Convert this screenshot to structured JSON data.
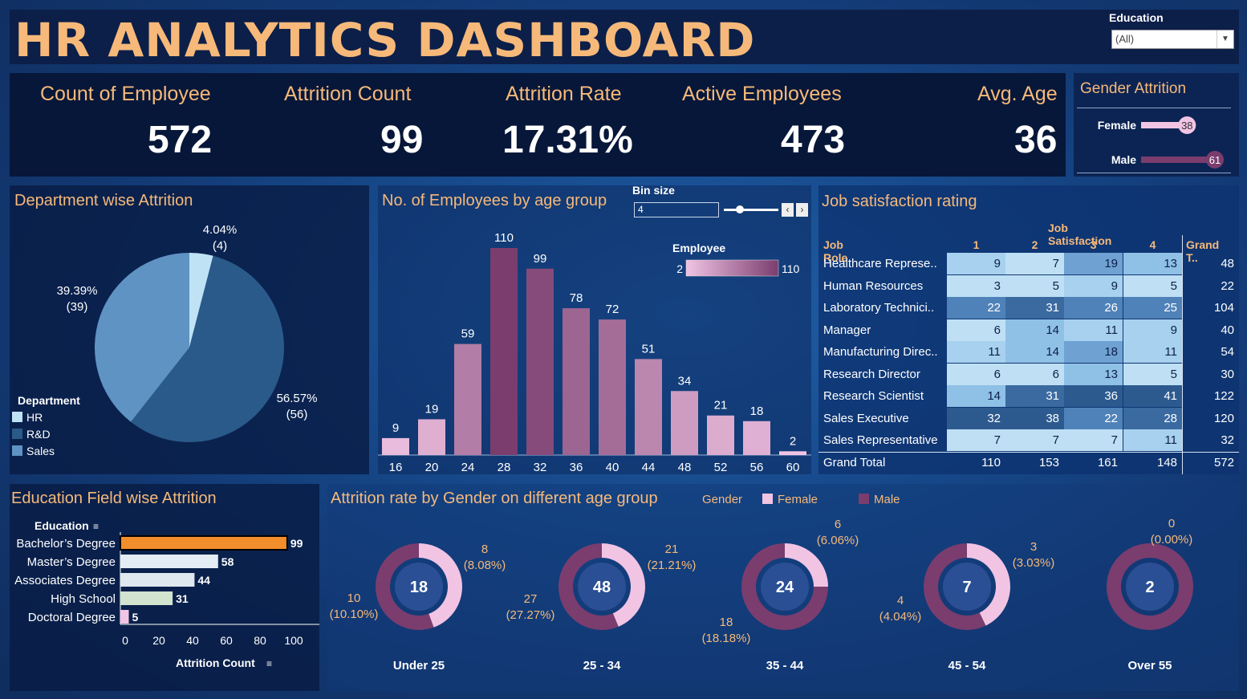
{
  "header": {
    "title": "HR ANALYTICS DASHBOARD"
  },
  "filter": {
    "label": "Education",
    "value": "(All)"
  },
  "kpis": [
    {
      "label": "Count of Employee",
      "value": "572"
    },
    {
      "label": "Attrition Count",
      "value": "99"
    },
    {
      "label": "Attrition Rate",
      "value": "17.31%"
    },
    {
      "label": "Active Employees",
      "value": "473"
    },
    {
      "label": "Avg. Age",
      "value": "36"
    }
  ],
  "gender_attrition": {
    "title": "Gender Attrition",
    "rows": [
      {
        "label": "Female",
        "value": 38,
        "color": "#f1c4e4"
      },
      {
        "label": "Male",
        "value": 61,
        "color": "#7a3d6e"
      }
    ]
  },
  "department": {
    "title": "Department wise Attrition",
    "legend_title": "Department",
    "slices": [
      {
        "name": "HR",
        "pct": "4.04%",
        "count": "(4)",
        "value": 4,
        "color": "#bfe3f5"
      },
      {
        "name": "R&D",
        "pct": "56.57%",
        "count": "(56)",
        "value": 56,
        "color": "#2a5a8a"
      },
      {
        "name": "Sales",
        "pct": "39.39%",
        "count": "(39)",
        "value": 39,
        "color": "#5f93c4"
      }
    ]
  },
  "age_group": {
    "title": "No. of Employees by age group",
    "bin_label": "Bin size",
    "bin_value": "4",
    "legend_title": "Employee",
    "legend_min": "2",
    "legend_max": "110"
  },
  "job_satisfaction": {
    "title": "Job satisfaction rating",
    "col_header": "Job Satisfaction",
    "row_header": "Job Role",
    "columns": [
      "1",
      "2",
      "3",
      "4"
    ],
    "grand_label": "Grand T..",
    "rows": [
      {
        "role": "Healthcare Represe..",
        "values": [
          "9",
          "7",
          "19",
          "13"
        ],
        "total": "48"
      },
      {
        "role": "Human Resources",
        "values": [
          "3",
          "5",
          "9",
          "5"
        ],
        "total": "22"
      },
      {
        "role": "Laboratory Technici..",
        "values": [
          "22",
          "31",
          "26",
          "25"
        ],
        "total": "104"
      },
      {
        "role": "Manager",
        "values": [
          "6",
          "14",
          "11",
          "9"
        ],
        "total": "40"
      },
      {
        "role": "Manufacturing Direc..",
        "values": [
          "11",
          "14",
          "18",
          "11"
        ],
        "total": "54"
      },
      {
        "role": "Research Director",
        "values": [
          "6",
          "6",
          "13",
          "5"
        ],
        "total": "30"
      },
      {
        "role": "Research Scientist",
        "values": [
          "14",
          "31",
          "36",
          "41"
        ],
        "total": "122"
      },
      {
        "role": "Sales Executive",
        "values": [
          "32",
          "38",
          "22",
          "28"
        ],
        "total": "120"
      },
      {
        "role": "Sales Representative",
        "values": [
          "7",
          "7",
          "7",
          "11"
        ],
        "total": "32"
      }
    ],
    "grand_total": {
      "label": "Grand Total",
      "values": [
        "110",
        "153",
        "161",
        "148"
      ],
      "total": "572"
    }
  },
  "education_field": {
    "title": "Education Field wise Attrition",
    "row_header": "Education",
    "axis_label": "Attrition Count"
  },
  "gender_age": {
    "title": "Attrition rate by Gender on different age group",
    "legend_title": "Gender",
    "legend": [
      {
        "name": "Female",
        "color": "#f1c4e4"
      },
      {
        "name": "Male",
        "color": "#7a3d6e"
      }
    ],
    "groups": [
      {
        "label": "Under 25",
        "center": "18",
        "female": "8",
        "female_pct": "(8.08%)",
        "male": "10",
        "male_pct": "(10.10%)"
      },
      {
        "label": "25 - 34",
        "center": "48",
        "female": "21",
        "female_pct": "(21.21%)",
        "male": "27",
        "male_pct": "(27.27%)"
      },
      {
        "label": "35 - 44",
        "center": "24",
        "female": "6",
        "female_pct": "(6.06%)",
        "male": "18",
        "male_pct": "(18.18%)"
      },
      {
        "label": "45 - 54",
        "center": "7",
        "female": "3",
        "female_pct": "(3.03%)",
        "male": "4",
        "male_pct": "(4.04%)"
      },
      {
        "label": "Over 55",
        "center": "2",
        "female": "0",
        "female_pct": "(0.00%)",
        "male": "",
        "male_pct": ""
      }
    ]
  },
  "chart_data": [
    {
      "type": "pie",
      "title": "Department wise Attrition",
      "categories": [
        "HR",
        "R&D",
        "Sales"
      ],
      "values": [
        4,
        56,
        39
      ]
    },
    {
      "type": "bar",
      "title": "No. of Employees by age group",
      "categories": [
        "16",
        "20",
        "24",
        "28",
        "32",
        "36",
        "40",
        "44",
        "48",
        "52",
        "56",
        "60"
      ],
      "values": [
        9,
        19,
        59,
        110,
        99,
        78,
        72,
        51,
        34,
        21,
        18,
        2
      ],
      "ylim": [
        0,
        110
      ]
    },
    {
      "type": "bar",
      "title": "Education Field wise Attrition",
      "orientation": "horizontal",
      "categories": [
        "Bachelor’s Degree",
        "Master’s Degree",
        "Associates Degree",
        "High School",
        "Doctoral Degree"
      ],
      "values": [
        99,
        58,
        44,
        31,
        5
      ],
      "xlabel": "Attrition Count",
      "xticks": [
        "0",
        "20",
        "40",
        "60",
        "80",
        "100"
      ],
      "xlim": [
        0,
        100
      ]
    },
    {
      "type": "pie",
      "title": "Attrition rate by Gender on different age group",
      "categories": [
        "Under 25",
        "25 - 34",
        "35 - 44",
        "45 - 54",
        "Over 55"
      ],
      "series": [
        {
          "name": "Female",
          "values": [
            8,
            21,
            6,
            3,
            0
          ]
        },
        {
          "name": "Male",
          "values": [
            10,
            27,
            18,
            4,
            2
          ]
        }
      ]
    }
  ]
}
